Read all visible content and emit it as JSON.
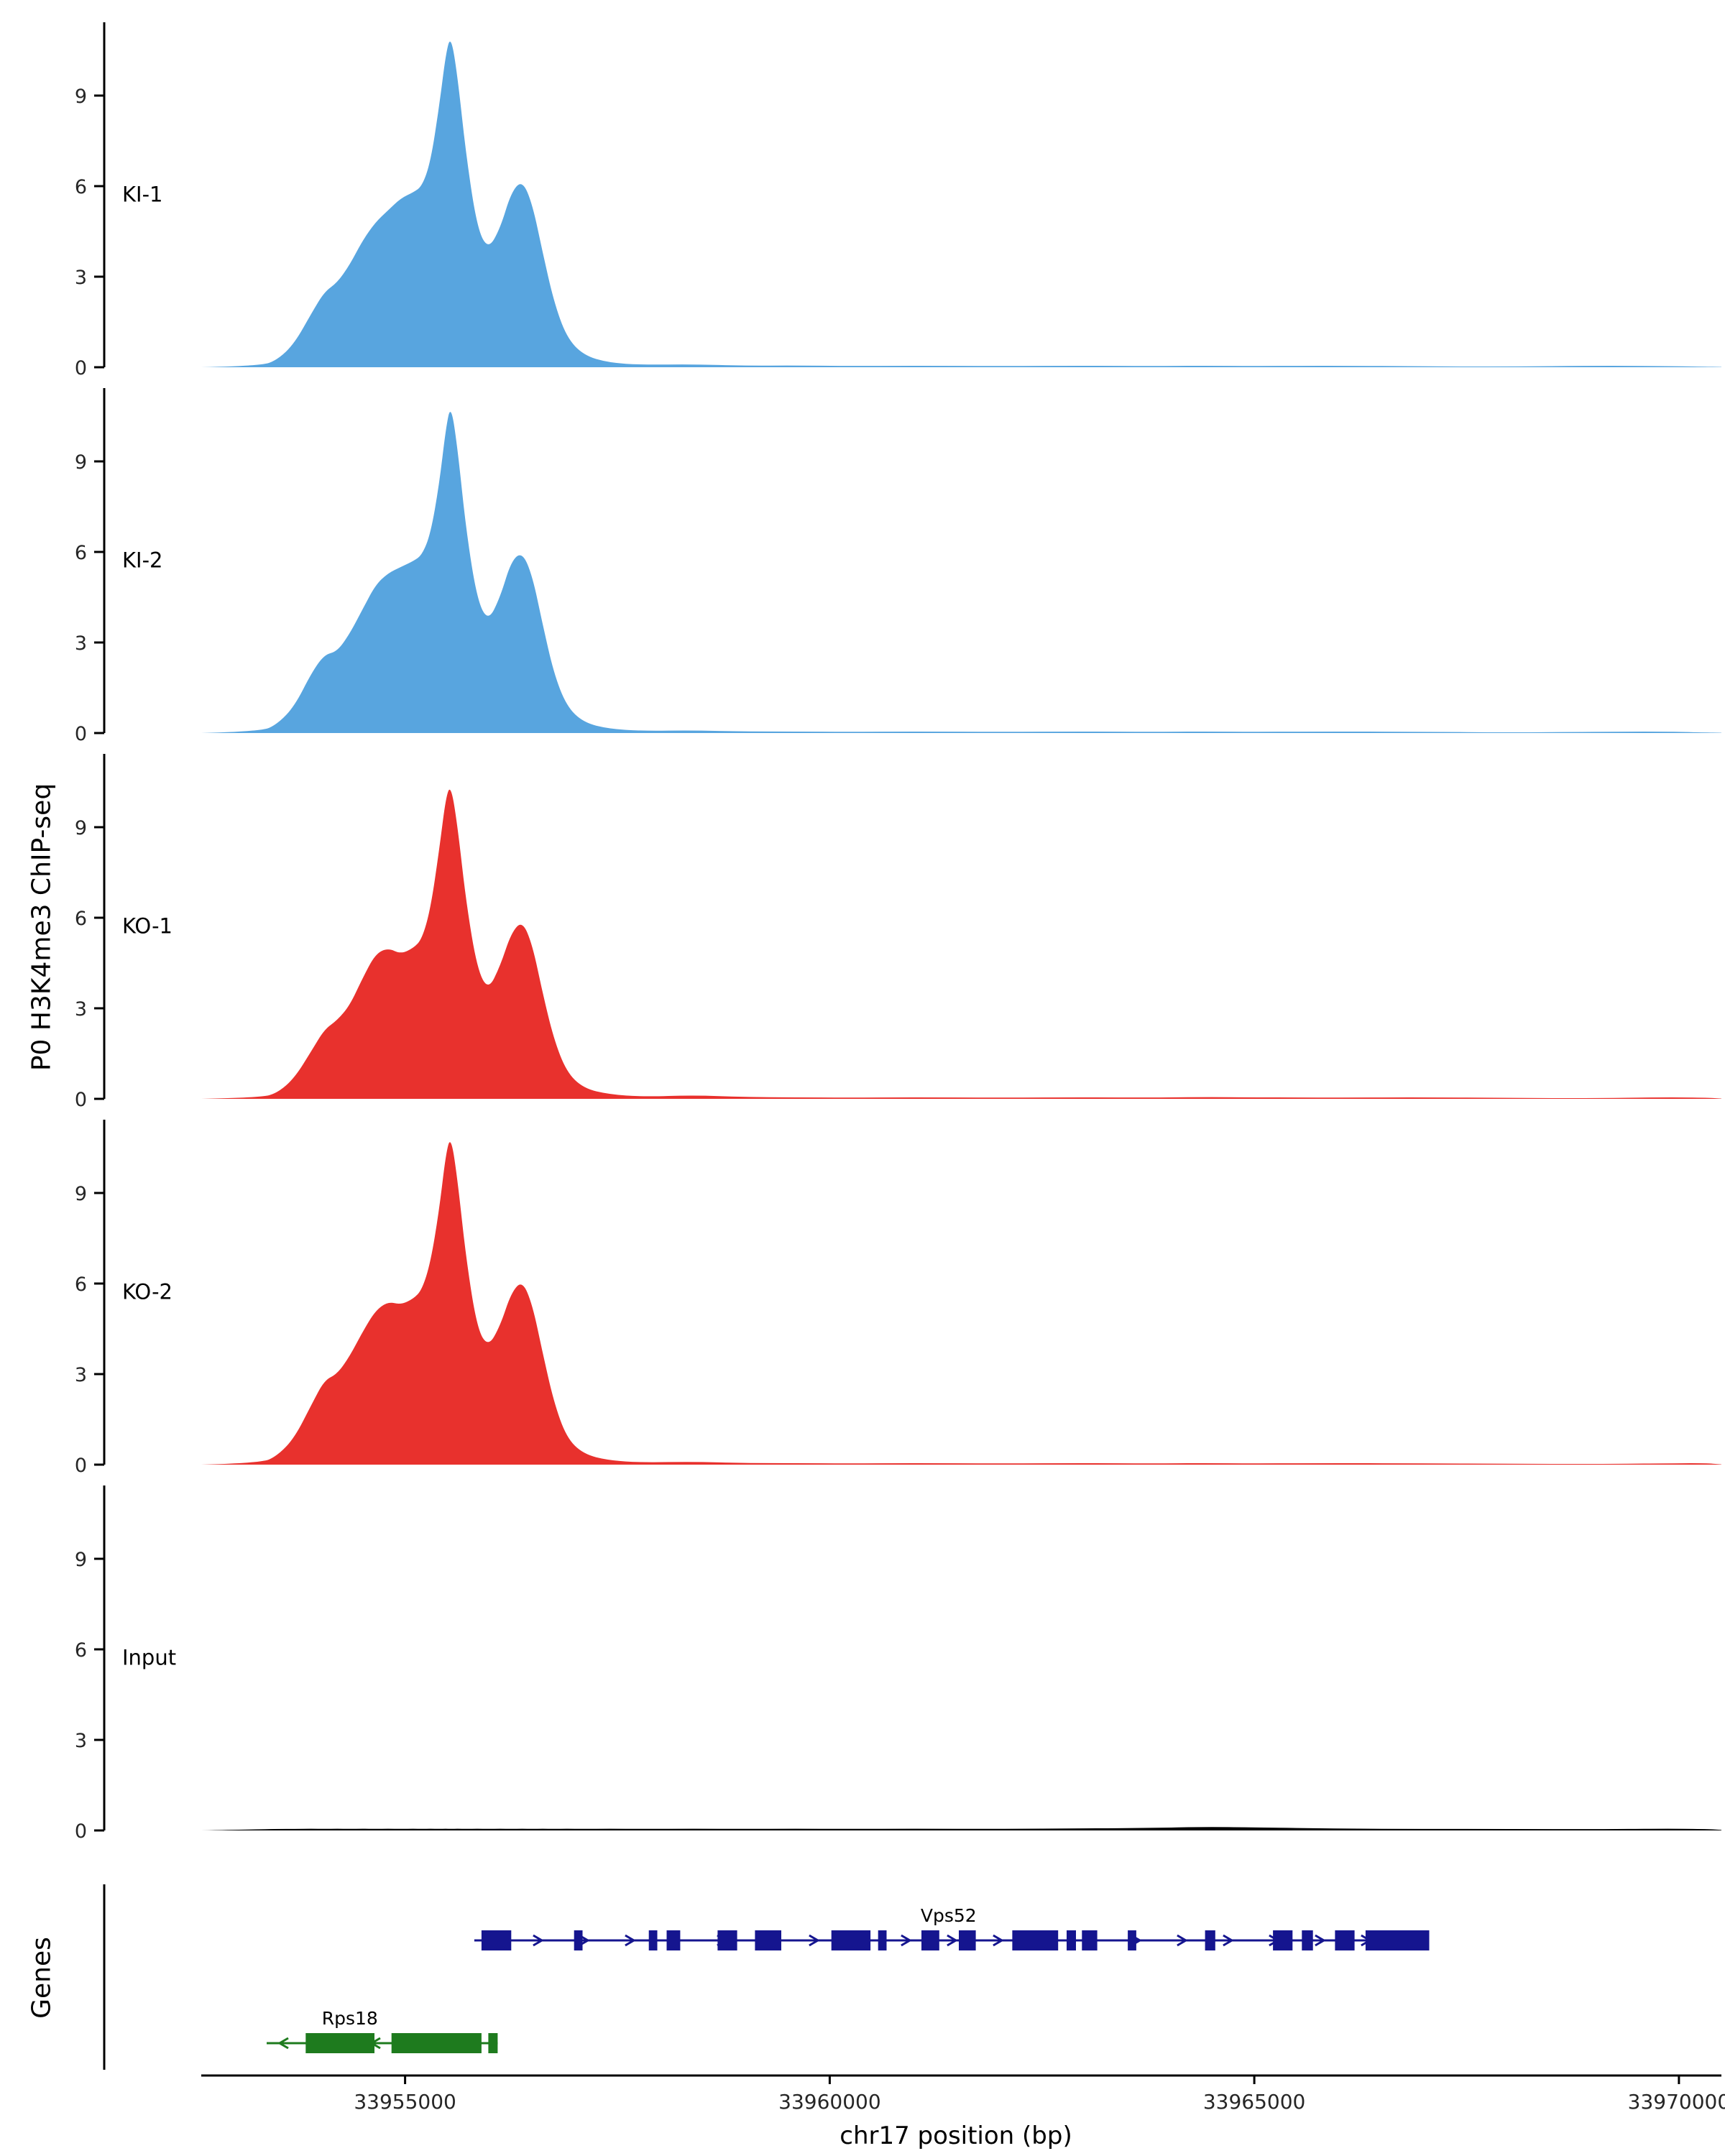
{
  "figure": {
    "ylabel": "P0 H3K4me3 ChIP-seq",
    "xlabel": "chr17 position (bp)",
    "genes_label": "Genes"
  },
  "colors": {
    "ki": "#58A5DF",
    "ko": "#E8312D",
    "input": "#000000",
    "vps52": "#15158F",
    "rps18": "#1E7B1E",
    "axis": "#000000",
    "tick_text": "#262626"
  },
  "chart_data": {
    "type": "area",
    "title": "",
    "xlabel": "chr17 position (bp)",
    "ylabel": "P0 H3K4me3 ChIP-seq",
    "x_range": [
      33952600,
      33970500
    ],
    "x_ticks": [
      33955000,
      33960000,
      33965000,
      33970000
    ],
    "x_tick_labels": [
      "33955000",
      "33960000",
      "33965000",
      "33970000"
    ],
    "y_ticks": [
      0,
      3,
      6,
      9
    ],
    "y_tick_labels": [
      "0",
      "3",
      "6",
      "9"
    ],
    "ylim": [
      0,
      11.4
    ],
    "x_bp": [
      33952600,
      33953300,
      33953500,
      33953700,
      33953900,
      33954050,
      33954200,
      33954350,
      33954500,
      33954650,
      33954800,
      33954950,
      33955100,
      33955200,
      33955300,
      33955400,
      33955480,
      33955540,
      33955620,
      33955720,
      33955850,
      33955980,
      33956120,
      33956250,
      33956380,
      33956500,
      33956620,
      33956750,
      33956900,
      33957100,
      33957400,
      33957800,
      33958400,
      33959000,
      33959600,
      33960200,
      33961000,
      33962000,
      33963000,
      33963800,
      33964400,
      33965000,
      33966000,
      33967000,
      33968000,
      33969000,
      33969800,
      33970300,
      33970500
    ],
    "series": [
      {
        "name": "KI-1",
        "color_key": "ki",
        "values": [
          0,
          0.04,
          0.25,
          0.8,
          1.8,
          2.5,
          2.8,
          3.4,
          4.2,
          4.8,
          5.2,
          5.6,
          5.8,
          6.0,
          6.8,
          8.6,
          10.4,
          11.0,
          9.6,
          7.0,
          4.6,
          3.9,
          4.6,
          5.8,
          6.2,
          5.4,
          3.8,
          2.2,
          1.0,
          0.4,
          0.15,
          0.08,
          0.1,
          0.05,
          0.06,
          0.04,
          0.05,
          0.04,
          0.05,
          0.04,
          0.05,
          0.04,
          0.05,
          0.03,
          0.02,
          0.05,
          0.04,
          0.02,
          0.01
        ]
      },
      {
        "name": "KI-2",
        "color_key": "ki",
        "values": [
          0,
          0.05,
          0.3,
          0.9,
          2.0,
          2.6,
          2.7,
          3.3,
          4.1,
          4.9,
          5.3,
          5.5,
          5.7,
          5.9,
          6.6,
          8.2,
          10.1,
          10.9,
          9.4,
          6.7,
          4.4,
          3.7,
          4.5,
          5.7,
          6.0,
          5.2,
          3.6,
          2.0,
          0.9,
          0.35,
          0.14,
          0.07,
          0.09,
          0.05,
          0.05,
          0.04,
          0.05,
          0.04,
          0.05,
          0.04,
          0.05,
          0.04,
          0.05,
          0.04,
          0.02,
          0.04,
          0.05,
          0.02,
          0.01
        ]
      },
      {
        "name": "KO-1",
        "color_key": "ko",
        "values": [
          0,
          0.04,
          0.2,
          0.7,
          1.6,
          2.3,
          2.6,
          3.1,
          4.0,
          4.8,
          5.0,
          4.8,
          5.0,
          5.3,
          6.3,
          8.2,
          10.0,
          10.4,
          9.0,
          6.5,
          4.3,
          3.6,
          4.4,
          5.5,
          5.9,
          5.1,
          3.5,
          2.0,
          0.9,
          0.35,
          0.15,
          0.07,
          0.12,
          0.06,
          0.05,
          0.04,
          0.05,
          0.04,
          0.05,
          0.04,
          0.06,
          0.05,
          0.04,
          0.05,
          0.03,
          0.02,
          0.05,
          0.04,
          0.01
        ]
      },
      {
        "name": "KO-2",
        "color_key": "ko",
        "values": [
          0,
          0.05,
          0.3,
          0.9,
          2.0,
          2.8,
          3.0,
          3.6,
          4.4,
          5.1,
          5.4,
          5.3,
          5.5,
          5.8,
          6.7,
          8.4,
          10.3,
          10.9,
          9.4,
          6.8,
          4.5,
          3.9,
          4.6,
          5.7,
          6.1,
          5.3,
          3.7,
          2.1,
          0.9,
          0.35,
          0.14,
          0.07,
          0.1,
          0.05,
          0.05,
          0.04,
          0.05,
          0.04,
          0.05,
          0.04,
          0.05,
          0.04,
          0.05,
          0.04,
          0.03,
          0.02,
          0.04,
          0.05,
          0.01
        ]
      },
      {
        "name": "Input",
        "color_key": "input",
        "values": [
          0,
          0.04,
          0.05,
          0.05,
          0.06,
          0.05,
          0.06,
          0.05,
          0.06,
          0.05,
          0.06,
          0.05,
          0.06,
          0.05,
          0.06,
          0.05,
          0.06,
          0.05,
          0.06,
          0.05,
          0.06,
          0.05,
          0.06,
          0.05,
          0.06,
          0.05,
          0.06,
          0.05,
          0.06,
          0.05,
          0.06,
          0.05,
          0.06,
          0.05,
          0.06,
          0.05,
          0.06,
          0.05,
          0.07,
          0.08,
          0.12,
          0.1,
          0.06,
          0.05,
          0.05,
          0.04,
          0.06,
          0.05,
          0.02
        ]
      }
    ],
    "genes": [
      {
        "name": "Vps52",
        "strand": "+",
        "start": 33955815,
        "end": 33967060,
        "color_key": "vps52",
        "label_bp": 33961400,
        "exons": [
          [
            33955900,
            33956250
          ],
          [
            33956990,
            33957090
          ],
          [
            33957870,
            33957970
          ],
          [
            33958080,
            33958240
          ],
          [
            33958680,
            33958910
          ],
          [
            33959120,
            33959430
          ],
          [
            33960020,
            33960480
          ],
          [
            33960570,
            33960670
          ],
          [
            33961080,
            33961290
          ],
          [
            33961520,
            33961720
          ],
          [
            33962150,
            33962690
          ],
          [
            33962790,
            33962900
          ],
          [
            33962970,
            33963150
          ],
          [
            33963510,
            33963610
          ],
          [
            33964420,
            33964540
          ],
          [
            33965220,
            33965450
          ],
          [
            33965560,
            33965690
          ],
          [
            33965950,
            33966180
          ],
          [
            33966310,
            33967060
          ]
        ]
      },
      {
        "name": "Rps18",
        "strand": "-",
        "start": 33953370,
        "end": 33956090,
        "color_key": "rps18",
        "label_bp": 33954350,
        "exons": [
          [
            33953830,
            33954640
          ],
          [
            33954840,
            33955900
          ],
          [
            33955980,
            33956090
          ]
        ]
      }
    ]
  }
}
